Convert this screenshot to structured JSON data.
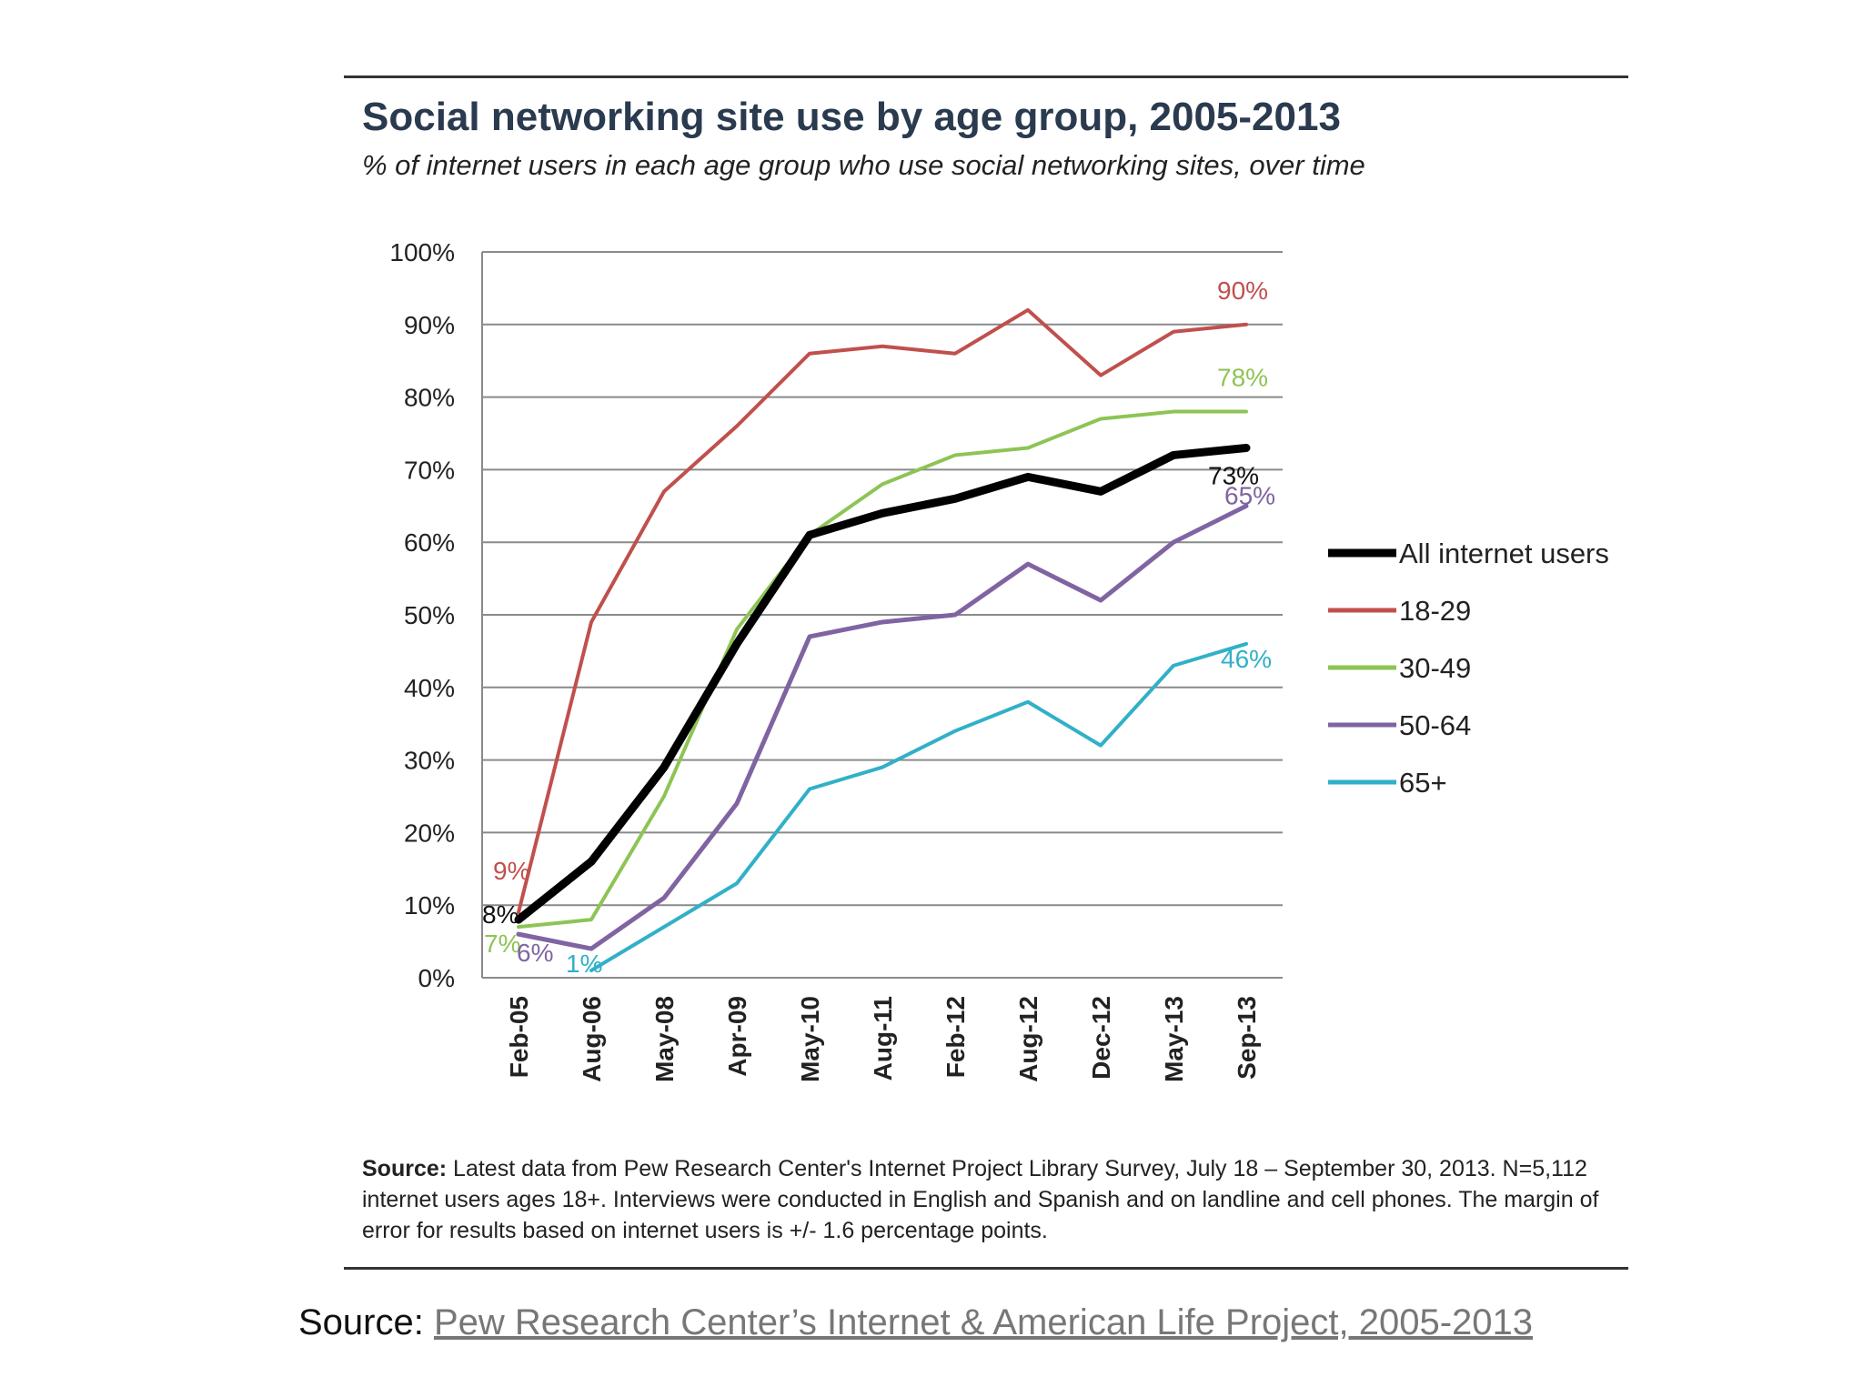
{
  "chart_data": {
    "type": "line",
    "title": "Social networking site use by age group, 2005-2013",
    "subtitle": "% of internet users in each age group who use social networking sites, over time",
    "categories": [
      "Feb-05",
      "Aug-06",
      "May-08",
      "Apr-09",
      "May-10",
      "Aug-11",
      "Feb-12",
      "Aug-12",
      "Dec-12",
      "May-13",
      "Sep-13"
    ],
    "y_ticks": [
      "0%",
      "10%",
      "20%",
      "30%",
      "40%",
      "50%",
      "60%",
      "70%",
      "80%",
      "90%",
      "100%"
    ],
    "ylim": [
      0,
      100
    ],
    "grid": true,
    "legend_position": "right",
    "series": [
      {
        "name": "18-29",
        "color": "#c0504d",
        "width": 4,
        "values": [
          9,
          49,
          67,
          76,
          86,
          87,
          86,
          92,
          83,
          89,
          90
        ],
        "start_label": "9%",
        "end_label": "90%"
      },
      {
        "name": "30-49",
        "color": "#8dc455",
        "width": 4,
        "values": [
          7,
          8,
          25,
          48,
          61,
          68,
          72,
          73,
          77,
          78,
          78
        ],
        "start_label": "7%",
        "end_label": "78%"
      },
      {
        "name": "50-64",
        "color": "#8064a2",
        "width": 5,
        "values": [
          6,
          4,
          11,
          24,
          47,
          49,
          50,
          57,
          52,
          60,
          65
        ],
        "start_label": "6%",
        "end_label": "65%"
      },
      {
        "name": "65+",
        "color": "#31b0c8",
        "width": 4,
        "values": [
          null,
          1,
          7,
          13,
          26,
          29,
          34,
          38,
          32,
          43,
          46
        ],
        "start_label": "1%",
        "end_label": "46%"
      },
      {
        "name": "All internet users",
        "color": "#000000",
        "width": 9,
        "values": [
          8,
          16,
          29,
          46,
          61,
          64,
          66,
          69,
          67,
          72,
          73
        ],
        "start_label": "8%",
        "end_label": "73%"
      }
    ],
    "legend_order": [
      "All internet users",
      "18-29",
      "30-49",
      "50-64",
      "65+"
    ]
  },
  "source_note": {
    "label": "Source:",
    "text": " Latest data from Pew Research Center's Internet Project Library Survey, July 18 – September 30, 2013. N=5,112 internet users ages 18+. Interviews were conducted in English and Spanish and on landline and cell phones.  The margin of error for results based on internet users is +/- 1.6 percentage points."
  },
  "footer": {
    "label": "Source: ",
    "link_text": "Pew Research Center’s Internet & American Life Project, 2005-2013"
  }
}
